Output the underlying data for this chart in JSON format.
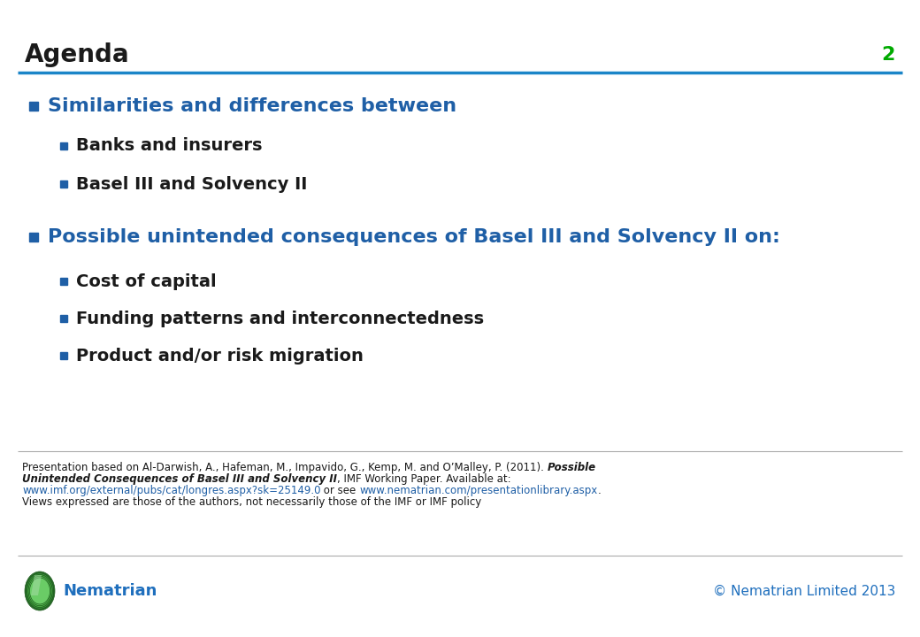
{
  "title": "Agenda",
  "slide_number": "2",
  "title_color": "#1a1a1a",
  "title_fontsize": 20,
  "slide_number_color": "#00aa00",
  "slide_number_fontsize": 16,
  "header_line_color": "#1a85c8",
  "background_color": "#ffffff",
  "bullet_color": "#1f5fa6",
  "text_dark": "#1a1a1a",
  "bullet1_text_color": "#1f5fa6",
  "bullet2_text_color": "#1a1a1a",
  "bullet1_items": [
    "Similarities and differences between"
  ],
  "bullet2_items_group1": [
    "Banks and insurers",
    "Basel III and Solvency II"
  ],
  "bullet1_items2": [
    "Possible unintended consequences of Basel III and Solvency II on:"
  ],
  "bullet2_items_group2": [
    "Cost of capital",
    "Funding patterns and interconnectedness",
    "Product and/or risk migration"
  ],
  "bullet1_fontsize": 16,
  "bullet2_fontsize": 14,
  "footer_fontsize": 8.5,
  "footer_color": "#1a1a1a",
  "footer_url_color": "#1f5fa6",
  "nematrian_text": "Nematrian",
  "nematrian_color": "#1f6fbd",
  "copyright_text": "© Nematrian Limited 2013",
  "copyright_color": "#1f6fbd",
  "sep_line_color": "#aaaaaa"
}
